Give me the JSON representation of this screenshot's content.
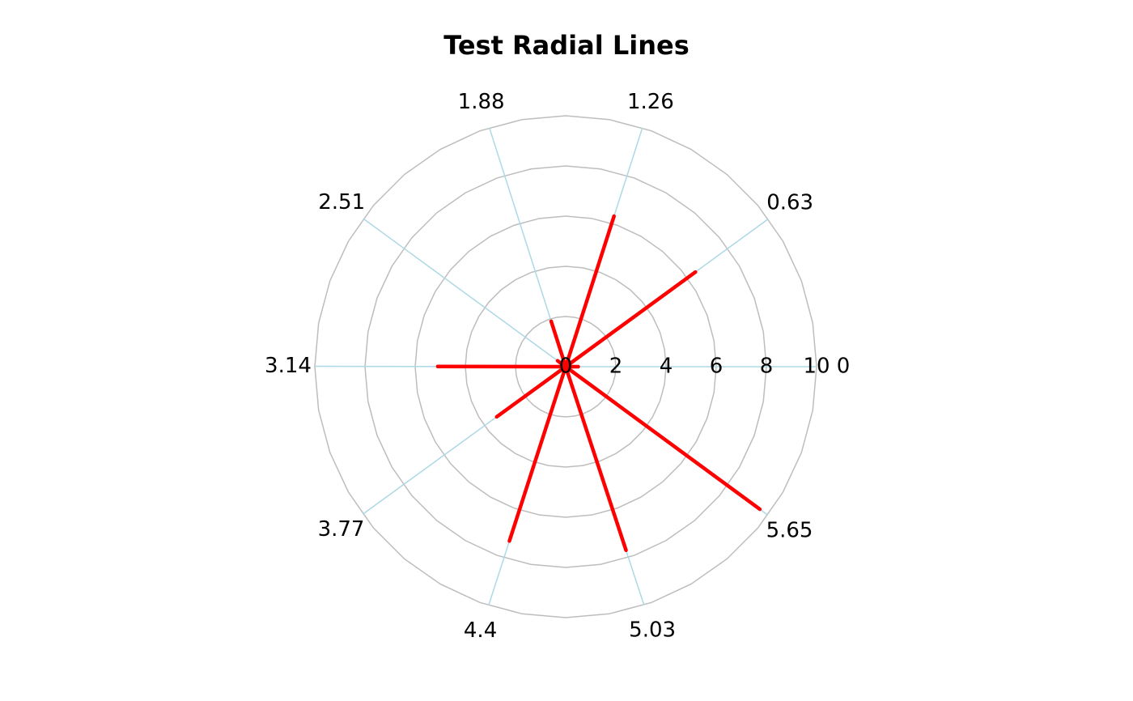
{
  "chart_data": {
    "type": "polar",
    "title": "Test Radial Lines",
    "x": [
      0,
      0.63,
      1.26,
      1.88,
      2.51,
      3.14,
      3.77,
      4.4,
      5.03,
      5.65
    ],
    "values": [
      0.5,
      6.4,
      6.3,
      1.9,
      0.4,
      5.1,
      3.4,
      7.3,
      7.7,
      9.6
    ],
    "color": "#ff0000",
    "rlim": [
      0,
      10
    ],
    "rticks": [
      0,
      2,
      4,
      6,
      8,
      10
    ],
    "thetaticks": [
      0,
      0.63,
      1.26,
      1.88,
      2.51,
      3.14,
      3.77,
      4.4,
      5.03,
      5.65
    ],
    "grid": true
  }
}
